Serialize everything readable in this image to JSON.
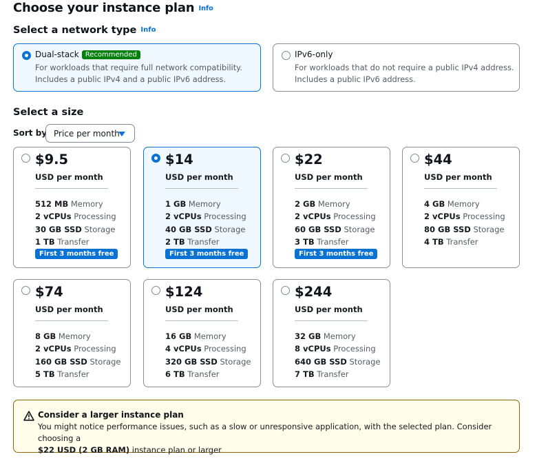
{
  "page": {
    "title": "Choose your instance plan",
    "info_label": "Info"
  },
  "network": {
    "title": "Select a network type",
    "info_label": "Info",
    "options": [
      {
        "label": "Dual-stack",
        "badge": "Recommended",
        "selected": true,
        "desc_line1": "For workloads that require full network compatibility.",
        "desc_line2": "Includes a public IPv4 and a public IPv6 address."
      },
      {
        "label": "IPv6-only",
        "badge": "",
        "selected": false,
        "desc_line1": "For workloads that do not require a public IPv4 address.",
        "desc_line2": "Includes a public IPv6 address."
      }
    ]
  },
  "size": {
    "title": "Select a size",
    "sort_label": "Sort by",
    "sort_value": "Price per month",
    "unit_label": "USD per month",
    "plans": [
      {
        "price": "$9.5",
        "selected": false,
        "memory": "512 MB",
        "vcpus": "2 vCPUs",
        "storage": "30 GB SSD",
        "transfer": "1 TB",
        "promo": "First 3 months free"
      },
      {
        "price": "$14",
        "selected": true,
        "memory": "1 GB",
        "vcpus": "2 vCPUs",
        "storage": "40 GB SSD",
        "transfer": "2 TB",
        "promo": "First 3 months free"
      },
      {
        "price": "$22",
        "selected": false,
        "memory": "2 GB",
        "vcpus": "2 vCPUs",
        "storage": "60 GB SSD",
        "transfer": "3 TB",
        "promo": "First 3 months free"
      },
      {
        "price": "$44",
        "selected": false,
        "memory": "4 GB",
        "vcpus": "2 vCPUs",
        "storage": "80 GB SSD",
        "transfer": "4 TB",
        "promo": ""
      },
      {
        "price": "$74",
        "selected": false,
        "memory": "8 GB",
        "vcpus": "2 vCPUs",
        "storage": "160 GB SSD",
        "transfer": "5 TB",
        "promo": ""
      },
      {
        "price": "$124",
        "selected": false,
        "memory": "16 GB",
        "vcpus": "4 vCPUs",
        "storage": "320 GB SSD",
        "transfer": "6 TB",
        "promo": ""
      },
      {
        "price": "$244",
        "selected": false,
        "memory": "32 GB",
        "vcpus": "8 vCPUs",
        "storage": "640 GB SSD",
        "transfer": "7 TB",
        "promo": ""
      }
    ],
    "spec_labels": {
      "memory": "Memory",
      "vcpus": "Processing",
      "storage": "Storage",
      "transfer": "Transfer"
    }
  },
  "alert": {
    "icon": "warning-icon",
    "title": "Consider a larger instance plan",
    "body_line1": "You might notice performance issues, such as a slow or unresponsive application, with the selected plan. Consider choosing a",
    "body_bold": "$22 USD (2 GB RAM)",
    "body_rest": " instance plan or larger"
  },
  "colors": {
    "accent": "#0972d3",
    "selected_bg": "#f0f8ff",
    "badge_green": "#037f0c",
    "warning_border": "#8d6605",
    "warning_bg": "#fffce9"
  }
}
